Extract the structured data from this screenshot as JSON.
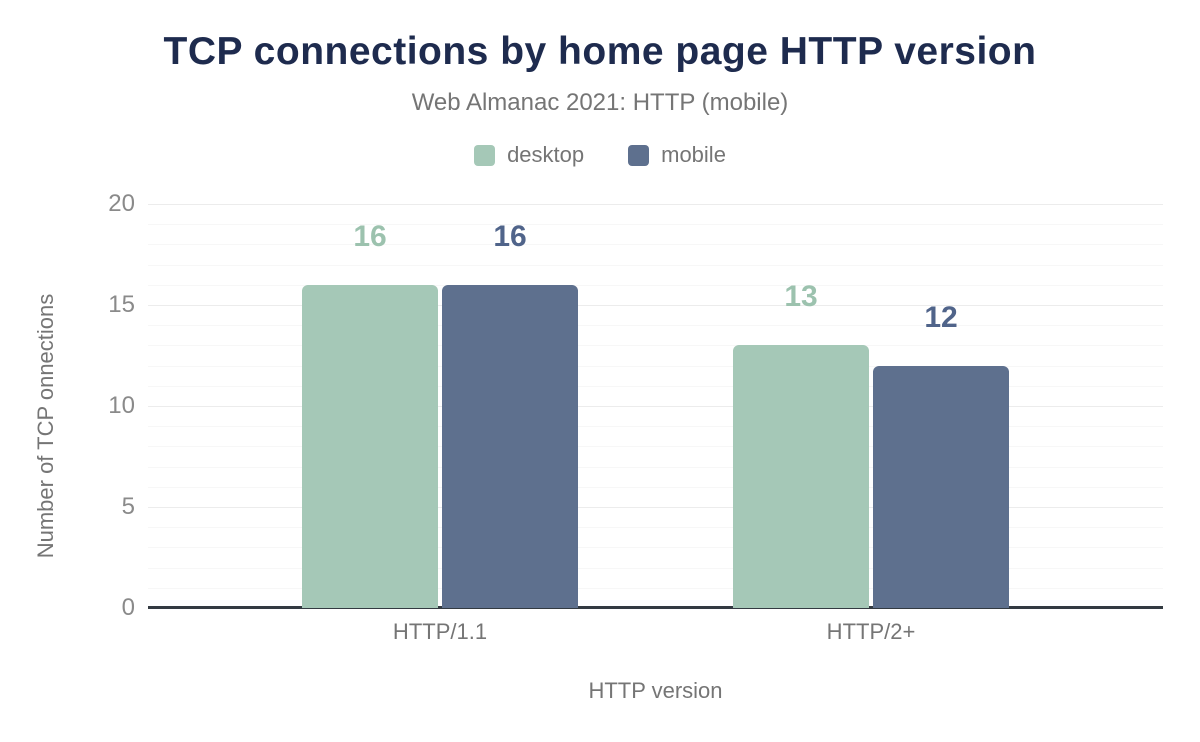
{
  "header": {
    "title": "TCP connections by home page HTTP version",
    "subtitle": "Web Almanac 2021: HTTP (mobile)"
  },
  "legend": {
    "items": [
      {
        "label": "desktop",
        "color": "#a5c8b7"
      },
      {
        "label": "mobile",
        "color": "#5e708e"
      }
    ]
  },
  "chart_data": {
    "type": "bar",
    "title": "TCP connections by home page HTTP version",
    "subtitle": "Web Almanac 2021: HTTP (mobile)",
    "categories": [
      "HTTP/1.1",
      "HTTP/2+"
    ],
    "series": [
      {
        "name": "desktop",
        "values": [
          16,
          13
        ],
        "color": "#a5c8b7",
        "label_color": "#9cc2ae"
      },
      {
        "name": "mobile",
        "values": [
          16,
          12
        ],
        "color": "#5e708e",
        "label_color": "#50648a"
      }
    ],
    "xlabel": "HTTP version",
    "ylabel": "Number of TCP onnections",
    "ylim": [
      0,
      20
    ],
    "yticks": [
      0,
      5,
      10,
      15,
      20
    ],
    "minor_grid_step": 1,
    "grid": true,
    "legend_position": "top",
    "value_labels": true
  },
  "colors": {
    "title": "#1e2b4e",
    "muted_text": "#757575",
    "tick_text": "#8a8a8a",
    "axis_line": "#333a41",
    "grid_major": "#ececec",
    "grid_minor": "#f7f7f7",
    "background": "#ffffff"
  }
}
